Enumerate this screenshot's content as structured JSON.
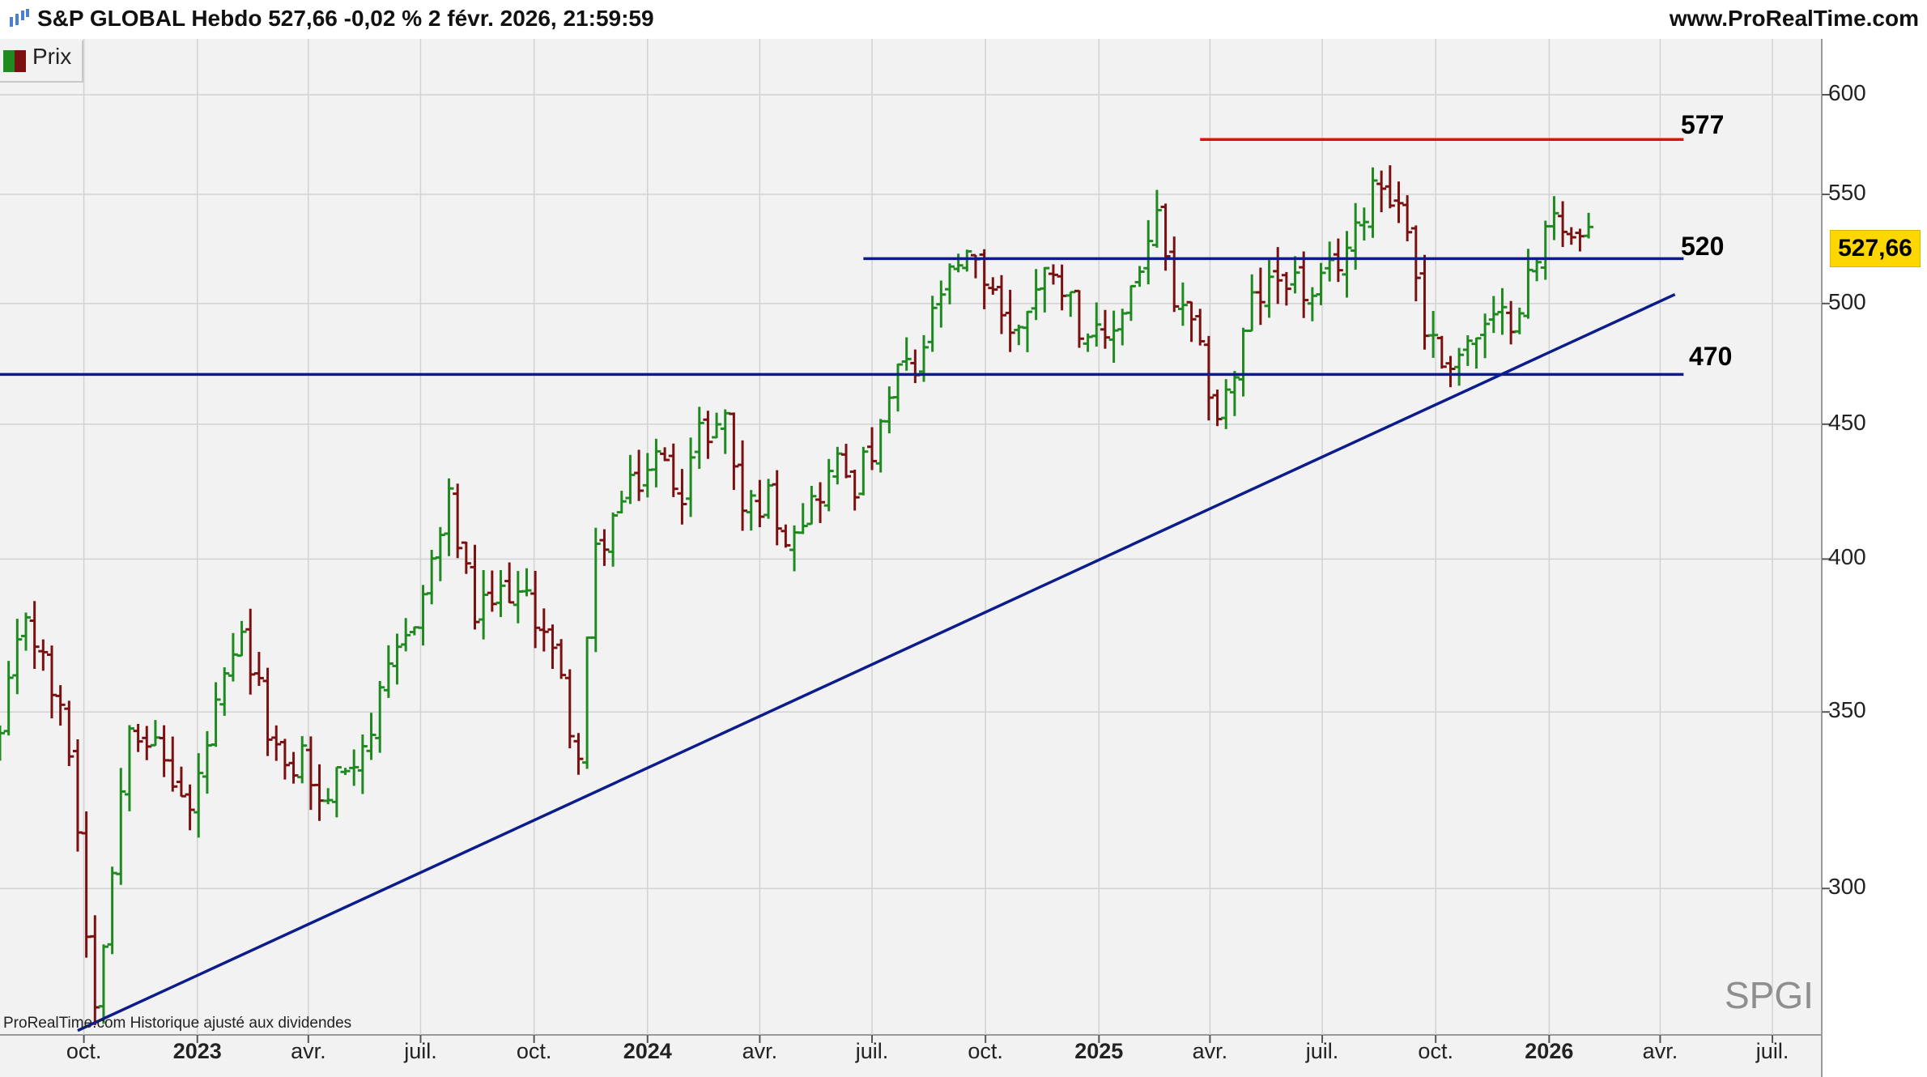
{
  "header": {
    "title": "S&P GLOBAL Hebdo 527,66 -0,02 % 2 févr. 2026, 21:59:59",
    "site": "www.ProRealTime.com"
  },
  "legend": {
    "label": "Prix",
    "up_color": "#1f8a1f",
    "down_color": "#7a1010"
  },
  "footnote": "ProRealTime.com  Historique ajusté aux dividendes",
  "watermark": "SPGI",
  "last_price_label": "527,66",
  "level_labels": {
    "resistance_high": "577",
    "resistance_mid": "520",
    "support": "470"
  },
  "chart_data": {
    "type": "candlestick-ohlc-bars",
    "symbol": "SPGI",
    "interval": "Hebdo",
    "y_scale": "log",
    "ylim": [
      264,
      630
    ],
    "y_ticks": [
      {
        "value": 300,
        "label": "300"
      },
      {
        "value": 350,
        "label": "350"
      },
      {
        "value": 400,
        "label": "400"
      },
      {
        "value": 450,
        "label": "450"
      },
      {
        "value": 500,
        "label": "500"
      },
      {
        "value": 550,
        "label": "550"
      },
      {
        "value": 600,
        "label": "600"
      }
    ],
    "xlim": [
      "2022-07-25",
      "2026-08-10"
    ],
    "x_ticks": [
      {
        "date": "2022-10-01",
        "label": "oct.",
        "bold": false
      },
      {
        "date": "2023-01-01",
        "label": "2023",
        "bold": true
      },
      {
        "date": "2023-04-01",
        "label": "avr.",
        "bold": false
      },
      {
        "date": "2023-07-01",
        "label": "juil.",
        "bold": false
      },
      {
        "date": "2023-10-01",
        "label": "oct.",
        "bold": false
      },
      {
        "date": "2024-01-01",
        "label": "2024",
        "bold": true
      },
      {
        "date": "2024-04-01",
        "label": "avr.",
        "bold": false
      },
      {
        "date": "2024-07-01",
        "label": "juil.",
        "bold": false
      },
      {
        "date": "2024-10-01",
        "label": "oct.",
        "bold": false
      },
      {
        "date": "2025-01-01",
        "label": "2025",
        "bold": true
      },
      {
        "date": "2025-04-01",
        "label": "avr.",
        "bold": false
      },
      {
        "date": "2025-07-01",
        "label": "juil.",
        "bold": false
      },
      {
        "date": "2025-10-01",
        "label": "oct.",
        "bold": false
      },
      {
        "date": "2026-01-01",
        "label": "2026",
        "bold": true
      },
      {
        "date": "2026-04-01",
        "label": "avr.",
        "bold": false
      },
      {
        "date": "2026-07-01",
        "label": "juil.",
        "bold": false
      }
    ],
    "anchors": [
      [
        "2022-07-25",
        342
      ],
      [
        "2022-08-15",
        382
      ],
      [
        "2022-08-29",
        365
      ],
      [
        "2022-09-19",
        340
      ],
      [
        "2022-10-03",
        290
      ],
      [
        "2022-10-10",
        272
      ],
      [
        "2022-10-24",
        305
      ],
      [
        "2022-11-07",
        350
      ],
      [
        "2022-12-05",
        335
      ],
      [
        "2022-12-26",
        320
      ],
      [
        "2023-01-16",
        350
      ],
      [
        "2023-02-06",
        372
      ],
      [
        "2023-03-13",
        330
      ],
      [
        "2023-03-27",
        338
      ],
      [
        "2023-04-10",
        322
      ],
      [
        "2023-05-22",
        345
      ],
      [
        "2023-06-05",
        360
      ],
      [
        "2023-07-03",
        388
      ],
      [
        "2023-07-24",
        420
      ],
      [
        "2023-08-14",
        380
      ],
      [
        "2023-09-11",
        390
      ],
      [
        "2023-10-09",
        378
      ],
      [
        "2023-10-23",
        358
      ],
      [
        "2023-11-06",
        336
      ],
      [
        "2023-11-20",
        402
      ],
      [
        "2023-12-11",
        420
      ],
      [
        "2024-01-08",
        437
      ],
      [
        "2024-01-29",
        426
      ],
      [
        "2024-02-12",
        446
      ],
      [
        "2024-03-04",
        452
      ],
      [
        "2024-03-18",
        418
      ],
      [
        "2024-04-08",
        422
      ],
      [
        "2024-04-22",
        410
      ],
      [
        "2024-05-13",
        420
      ],
      [
        "2024-06-03",
        435
      ],
      [
        "2024-06-17",
        428
      ],
      [
        "2024-07-08",
        445
      ],
      [
        "2024-07-22",
        472
      ],
      [
        "2024-08-05",
        470
      ],
      [
        "2024-08-26",
        505
      ],
      [
        "2024-09-16",
        518
      ],
      [
        "2024-10-07",
        508
      ],
      [
        "2024-10-21",
        485
      ],
      [
        "2024-11-04",
        500
      ],
      [
        "2024-11-25",
        518
      ],
      [
        "2024-12-16",
        492
      ],
      [
        "2025-01-06",
        480
      ],
      [
        "2025-02-03",
        517
      ],
      [
        "2025-02-17",
        537
      ],
      [
        "2025-03-03",
        500
      ],
      [
        "2025-03-17",
        488
      ],
      [
        "2025-04-07",
        454
      ],
      [
        "2025-04-21",
        470
      ],
      [
        "2025-05-05",
        500
      ],
      [
        "2025-06-02",
        514
      ],
      [
        "2025-06-23",
        500
      ],
      [
        "2025-07-14",
        520
      ],
      [
        "2025-07-28",
        530
      ],
      [
        "2025-08-11",
        558
      ],
      [
        "2025-08-25",
        552
      ],
      [
        "2025-09-08",
        535
      ],
      [
        "2025-09-22",
        490
      ],
      [
        "2025-10-06",
        475
      ],
      [
        "2025-10-20",
        480
      ],
      [
        "2025-11-10",
        488
      ],
      [
        "2025-12-01",
        495
      ],
      [
        "2025-12-22",
        518
      ],
      [
        "2026-01-05",
        545
      ],
      [
        "2026-01-19",
        530
      ],
      [
        "2026-02-02",
        527.66
      ]
    ],
    "series": [
      {
        "type": "horizontal-line",
        "value": 577,
        "color": "#e01010",
        "from": "2025-03-24",
        "to": "2026-04-20"
      },
      {
        "type": "horizontal-line",
        "value": 520,
        "color": "#0c1c8a",
        "from": "2024-06-24",
        "to": "2026-04-20"
      },
      {
        "type": "horizontal-line",
        "value": 470,
        "color": "#0c1c8a",
        "from": "2022-07-25",
        "to": "2026-04-20"
      },
      {
        "type": "trendline",
        "color": "#0c1c8a",
        "points": [
          [
            "2022-09-26",
            265
          ],
          [
            "2026-04-13",
            504
          ]
        ]
      }
    ]
  }
}
